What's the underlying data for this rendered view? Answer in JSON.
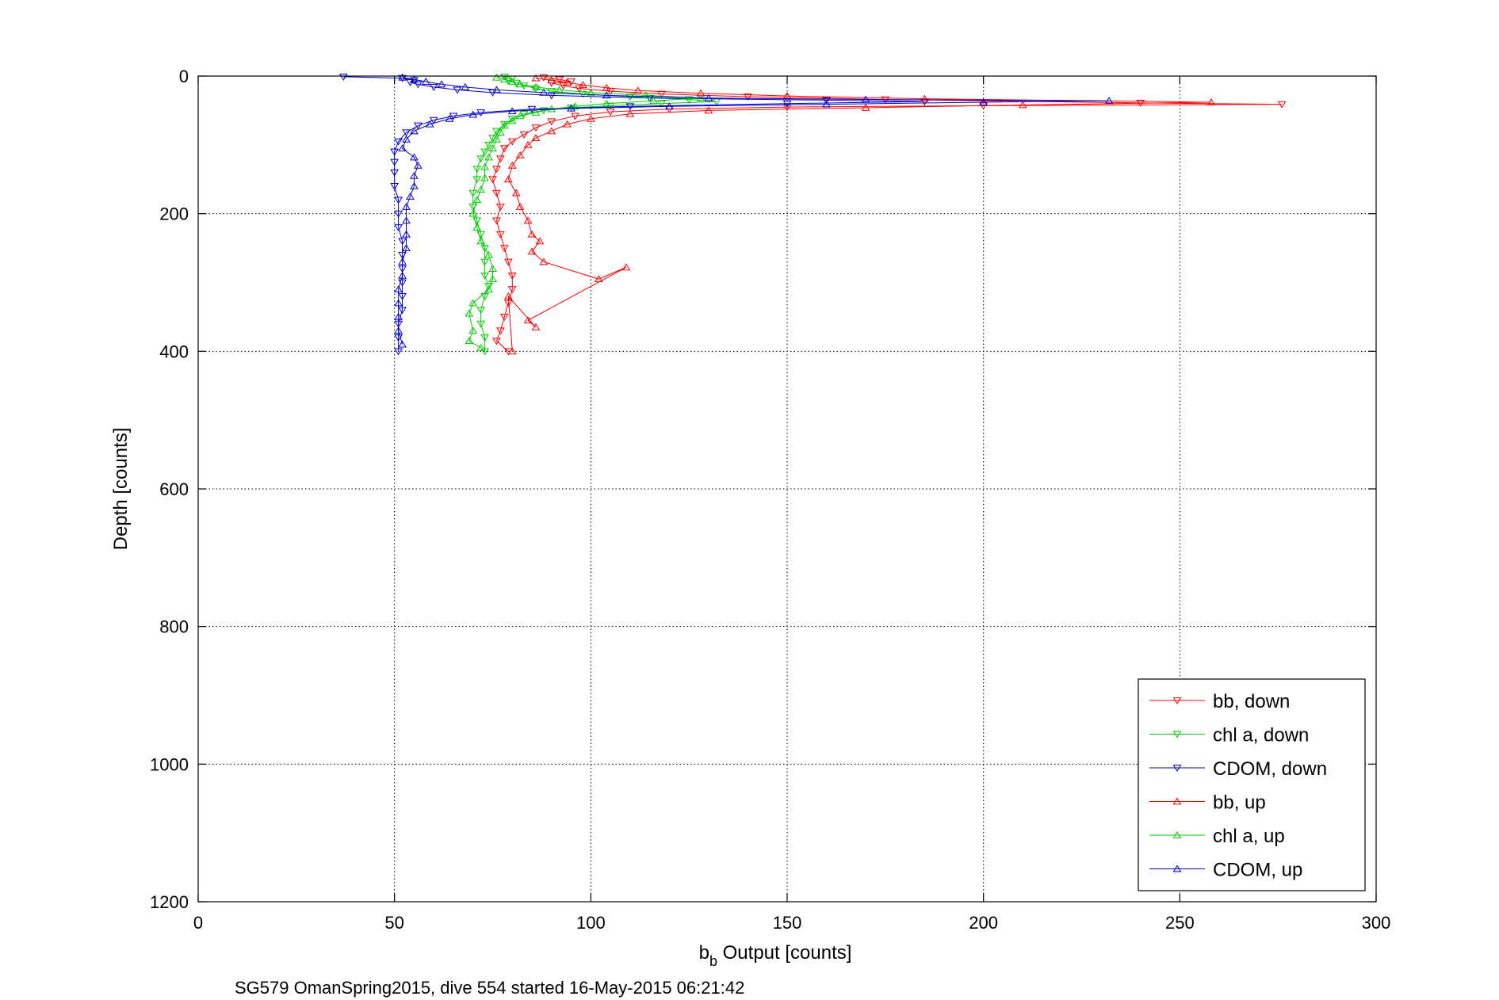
{
  "chart_data": {
    "type": "scatter",
    "title": "",
    "xlabel_main": "b",
    "xlabel_sub": "b",
    "xlabel_rest": " Output [counts]",
    "ylabel": "Depth [counts]",
    "footer": "SG579 OmanSpring2015, dive 554 started 16-May-2015 06:21:42",
    "xlim": [
      0,
      300
    ],
    "ylim": [
      0,
      1200
    ],
    "y_reversed": true,
    "grid": true,
    "legend_position": "bottom-right",
    "x_ticks": [
      "0",
      "50",
      "100",
      "150",
      "200",
      "250",
      "300"
    ],
    "y_ticks": [
      "0",
      "200",
      "400",
      "600",
      "800",
      "1000",
      "1200"
    ],
    "series": [
      {
        "name": "bb, down",
        "color": "#ff0000",
        "marker": "triangle-down",
        "points": [
          [
            88,
            2
          ],
          [
            92,
            5
          ],
          [
            95,
            8
          ],
          [
            90,
            10
          ],
          [
            93,
            14
          ],
          [
            97,
            18
          ],
          [
            105,
            22
          ],
          [
            118,
            26
          ],
          [
            140,
            30
          ],
          [
            175,
            34
          ],
          [
            240,
            39
          ],
          [
            276,
            41
          ],
          [
            200,
            43
          ],
          [
            150,
            45
          ],
          [
            120,
            48
          ],
          [
            105,
            52
          ],
          [
            96,
            58
          ],
          [
            90,
            66
          ],
          [
            86,
            75
          ],
          [
            83,
            85
          ],
          [
            80,
            95
          ],
          [
            78,
            105
          ],
          [
            77,
            120
          ],
          [
            76,
            135
          ],
          [
            75,
            150
          ],
          [
            76,
            170
          ],
          [
            77,
            190
          ],
          [
            76,
            210
          ],
          [
            77,
            230
          ],
          [
            78,
            250
          ],
          [
            79,
            270
          ],
          [
            80,
            290
          ],
          [
            80,
            310
          ],
          [
            79,
            330
          ],
          [
            78,
            350
          ],
          [
            77,
            370
          ],
          [
            76,
            385
          ],
          [
            79,
            400
          ]
        ]
      },
      {
        "name": "chl a, down",
        "color": "#00cc00",
        "marker": "triangle-down",
        "points": [
          [
            78,
            1
          ],
          [
            80,
            4
          ],
          [
            79,
            7
          ],
          [
            81,
            10
          ],
          [
            83,
            14
          ],
          [
            86,
            18
          ],
          [
            90,
            22
          ],
          [
            98,
            26
          ],
          [
            110,
            30
          ],
          [
            125,
            34
          ],
          [
            132,
            37
          ],
          [
            118,
            40
          ],
          [
            105,
            43
          ],
          [
            95,
            46
          ],
          [
            88,
            50
          ],
          [
            83,
            55
          ],
          [
            80,
            62
          ],
          [
            78,
            70
          ],
          [
            76,
            80
          ],
          [
            75,
            90
          ],
          [
            74,
            100
          ],
          [
            73,
            110
          ],
          [
            72,
            120
          ],
          [
            71,
            135
          ],
          [
            71,
            150
          ],
          [
            70,
            170
          ],
          [
            70,
            190
          ],
          [
            71,
            210
          ],
          [
            72,
            230
          ],
          [
            73,
            250
          ],
          [
            73,
            270
          ],
          [
            73,
            290
          ],
          [
            74,
            305
          ],
          [
            73,
            320
          ],
          [
            72,
            340
          ],
          [
            72,
            360
          ],
          [
            73,
            380
          ],
          [
            73,
            400
          ]
        ]
      },
      {
        "name": "CDOM, down",
        "color": "#0000cc",
        "marker": "triangle-down",
        "points": [
          [
            37,
            1
          ],
          [
            52,
            3
          ],
          [
            55,
            6
          ],
          [
            54,
            9
          ],
          [
            56,
            12
          ],
          [
            60,
            16
          ],
          [
            66,
            20
          ],
          [
            75,
            24
          ],
          [
            90,
            28
          ],
          [
            115,
            32
          ],
          [
            160,
            35
          ],
          [
            185,
            37
          ],
          [
            150,
            40
          ],
          [
            110,
            44
          ],
          [
            85,
            48
          ],
          [
            72,
            53
          ],
          [
            65,
            58
          ],
          [
            60,
            64
          ],
          [
            56,
            72
          ],
          [
            53,
            82
          ],
          [
            51,
            95
          ],
          [
            50,
            110
          ],
          [
            50,
            125
          ],
          [
            50,
            140
          ],
          [
            50,
            160
          ],
          [
            51,
            180
          ],
          [
            51,
            200
          ],
          [
            51,
            220
          ],
          [
            52,
            240
          ],
          [
            52,
            260
          ],
          [
            52,
            280
          ],
          [
            52,
            300
          ],
          [
            52,
            320
          ],
          [
            52,
            340
          ],
          [
            51,
            360
          ],
          [
            51,
            380
          ],
          [
            51,
            400
          ]
        ]
      },
      {
        "name": "bb, up",
        "color": "#ff0000",
        "marker": "triangle-up",
        "points": [
          [
            86,
            3
          ],
          [
            90,
            6
          ],
          [
            94,
            9
          ],
          [
            98,
            13
          ],
          [
            104,
            17
          ],
          [
            112,
            21
          ],
          [
            128,
            25
          ],
          [
            150,
            29
          ],
          [
            185,
            33
          ],
          [
            258,
            38
          ],
          [
            210,
            42
          ],
          [
            170,
            46
          ],
          [
            130,
            50
          ],
          [
            110,
            55
          ],
          [
            100,
            62
          ],
          [
            94,
            70
          ],
          [
            90,
            80
          ],
          [
            86,
            90
          ],
          [
            84,
            100
          ],
          [
            82,
            115
          ],
          [
            80,
            130
          ],
          [
            79,
            150
          ],
          [
            81,
            170
          ],
          [
            82,
            190
          ],
          [
            84,
            210
          ],
          [
            85,
            230
          ],
          [
            87,
            240
          ],
          [
            85,
            255
          ],
          [
            88,
            270
          ],
          [
            102,
            295
          ],
          [
            109,
            278
          ],
          [
            84,
            355
          ],
          [
            86,
            365
          ],
          [
            79,
            320
          ],
          [
            80,
            400
          ]
        ]
      },
      {
        "name": "chl a, up",
        "color": "#00cc00",
        "marker": "triangle-up",
        "points": [
          [
            76,
            2
          ],
          [
            78,
            5
          ],
          [
            80,
            8
          ],
          [
            82,
            12
          ],
          [
            86,
            16
          ],
          [
            92,
            20
          ],
          [
            100,
            24
          ],
          [
            114,
            28
          ],
          [
            128,
            32
          ],
          [
            116,
            36
          ],
          [
            104,
            40
          ],
          [
            96,
            44
          ],
          [
            90,
            48
          ],
          [
            86,
            53
          ],
          [
            82,
            58
          ],
          [
            80,
            65
          ],
          [
            78,
            72
          ],
          [
            77,
            82
          ],
          [
            76,
            92
          ],
          [
            75,
            105
          ],
          [
            74,
            118
          ],
          [
            73,
            132
          ],
          [
            73,
            148
          ],
          [
            72,
            165
          ],
          [
            71,
            180
          ],
          [
            70,
            200
          ],
          [
            71,
            220
          ],
          [
            72,
            240
          ],
          [
            74,
            260
          ],
          [
            75,
            280
          ],
          [
            75,
            295
          ],
          [
            74,
            310
          ],
          [
            70,
            330
          ],
          [
            69,
            345
          ],
          [
            70,
            370
          ],
          [
            69,
            385
          ],
          [
            72,
            395
          ]
        ]
      },
      {
        "name": "CDOM, up",
        "color": "#0000cc",
        "marker": "triangle-up",
        "points": [
          [
            52,
            2
          ],
          [
            55,
            5
          ],
          [
            58,
            8
          ],
          [
            62,
            12
          ],
          [
            68,
            16
          ],
          [
            76,
            20
          ],
          [
            88,
            24
          ],
          [
            104,
            28
          ],
          [
            130,
            32
          ],
          [
            170,
            34
          ],
          [
            232,
            36
          ],
          [
            200,
            38
          ],
          [
            160,
            41
          ],
          [
            120,
            44
          ],
          [
            95,
            47
          ],
          [
            80,
            51
          ],
          [
            70,
            56
          ],
          [
            64,
            62
          ],
          [
            59,
            70
          ],
          [
            55,
            80
          ],
          [
            53,
            92
          ],
          [
            52,
            105
          ],
          [
            55,
            118
          ],
          [
            56,
            130
          ],
          [
            55,
            145
          ],
          [
            55,
            160
          ],
          [
            54,
            175
          ],
          [
            53,
            190
          ],
          [
            53,
            210
          ],
          [
            53,
            230
          ],
          [
            53,
            250
          ],
          [
            52,
            270
          ],
          [
            52,
            290
          ],
          [
            51,
            310
          ],
          [
            51,
            330
          ],
          [
            51,
            350
          ],
          [
            51,
            370
          ],
          [
            52,
            390
          ]
        ]
      }
    ]
  }
}
